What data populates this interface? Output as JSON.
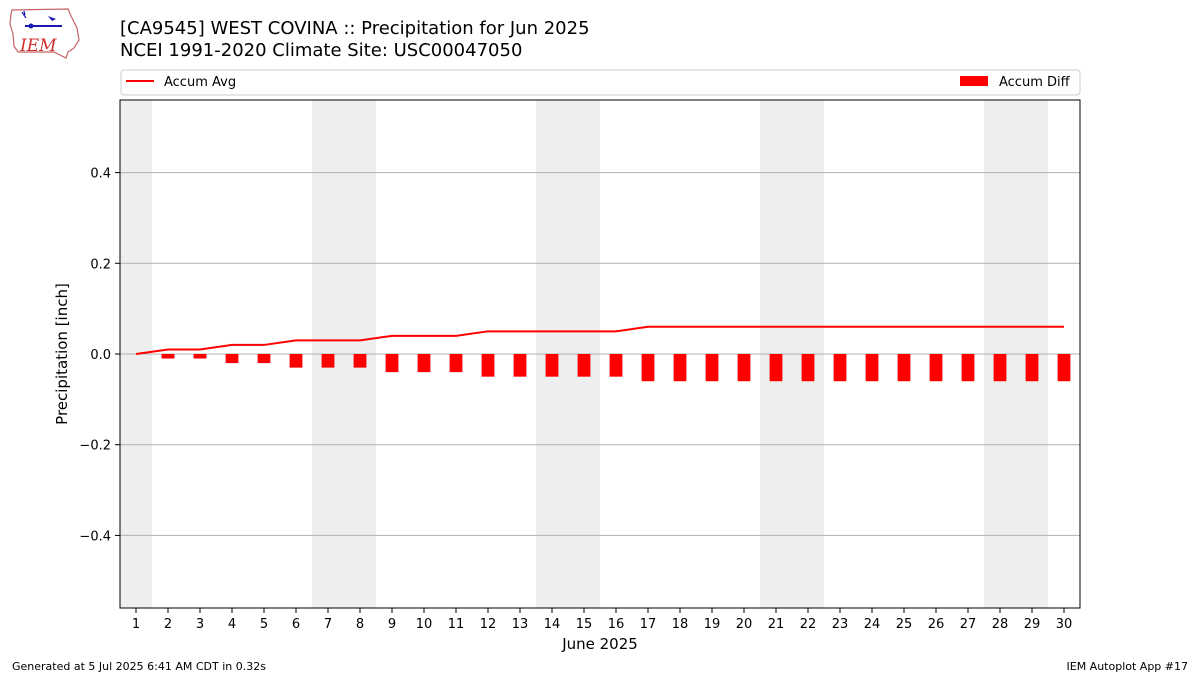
{
  "header": {
    "logo_text": "IEM",
    "title_line1": "[CA9545] WEST COVINA :: Precipitation for Jun 2025",
    "title_line2": "NCEI 1991-2020 Climate Site: USC00047050"
  },
  "footer": {
    "left": "Generated at 5 Jul 2025 6:41 AM CDT in 0.32s",
    "right": "IEM Autoplot App #17"
  },
  "chart_data": {
    "type": "bar",
    "xlabel": "June 2025",
    "ylabel": "Precipitation [inch]",
    "ylim": [
      -0.56,
      0.56
    ],
    "yticks": [
      -0.4,
      -0.2,
      0.0,
      0.2,
      0.4
    ],
    "ytick_labels": [
      "−0.4",
      "−0.2",
      "0.0",
      "0.2",
      "0.4"
    ],
    "grid": "horizontal",
    "legend_placement": "top, above plot",
    "x": [
      1,
      2,
      3,
      4,
      5,
      6,
      7,
      8,
      9,
      10,
      11,
      12,
      13,
      14,
      15,
      16,
      17,
      18,
      19,
      20,
      21,
      22,
      23,
      24,
      25,
      26,
      27,
      28,
      29,
      30
    ],
    "weekend_shading": [
      [
        1,
        1
      ],
      [
        7,
        8
      ],
      [
        14,
        15
      ],
      [
        21,
        22
      ],
      [
        28,
        29
      ]
    ],
    "series": [
      {
        "name": "Accum Avg",
        "type": "line",
        "color": "#ff0000",
        "values": [
          0.0,
          0.01,
          0.01,
          0.02,
          0.02,
          0.03,
          0.03,
          0.03,
          0.04,
          0.04,
          0.04,
          0.05,
          0.05,
          0.05,
          0.05,
          0.05,
          0.06,
          0.06,
          0.06,
          0.06,
          0.06,
          0.06,
          0.06,
          0.06,
          0.06,
          0.06,
          0.06,
          0.06,
          0.06,
          0.06
        ]
      },
      {
        "name": "Accum Diff",
        "type": "bar",
        "color": "#ff0000",
        "values": [
          0.0,
          -0.01,
          -0.01,
          -0.02,
          -0.02,
          -0.03,
          -0.03,
          -0.03,
          -0.04,
          -0.04,
          -0.04,
          -0.05,
          -0.05,
          -0.05,
          -0.05,
          -0.05,
          -0.06,
          -0.06,
          -0.06,
          -0.06,
          -0.06,
          -0.06,
          -0.06,
          -0.06,
          -0.06,
          -0.06,
          -0.06,
          -0.06,
          -0.06,
          -0.06
        ]
      }
    ]
  }
}
